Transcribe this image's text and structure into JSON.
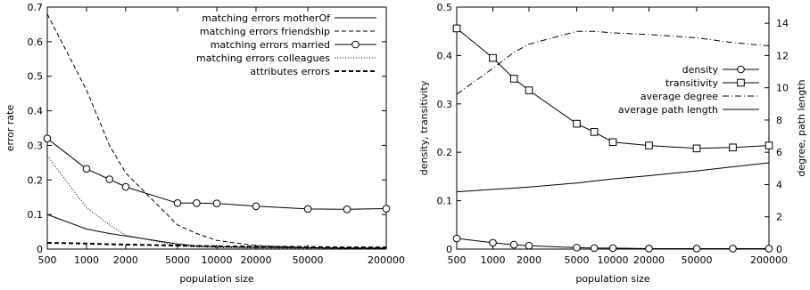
{
  "chart_data": [
    {
      "type": "line",
      "xlabel": "population size",
      "ylabel": "error rate",
      "x_scale": "log",
      "xlim": [
        500,
        200000
      ],
      "ylim": [
        0,
        0.7
      ],
      "x_ticks": [
        500,
        1000,
        2000,
        5000,
        10000,
        20000,
        50000,
        200000
      ],
      "x_tick_labels": [
        "500",
        "1000",
        "2000",
        "5000",
        "10000",
        "20000",
        "50000",
        "200000"
      ],
      "y_ticks": [
        0,
        0.1,
        0.2,
        0.3,
        0.4,
        0.5,
        0.6,
        0.7
      ],
      "y_tick_labels": [
        "0",
        "0.1",
        "0.2",
        "0.3",
        "0.4",
        "0.5",
        "0.6",
        "0.7"
      ],
      "legend_position": "top-right",
      "series": [
        {
          "name": "matching errors motherOf",
          "style": "solid",
          "marker": "none",
          "x": [
            500,
            1000,
            1500,
            2000,
            5000,
            7000,
            10000,
            20000,
            50000,
            100000,
            200000
          ],
          "y": [
            0.1,
            0.058,
            0.045,
            0.038,
            0.015,
            0.009,
            0.007,
            0.005,
            0.004,
            0.003,
            0.003
          ]
        },
        {
          "name": "matching errors friendship",
          "style": "dashed",
          "marker": "none",
          "x": [
            500,
            1000,
            1500,
            2000,
            5000,
            7000,
            10000,
            20000,
            50000,
            100000,
            200000
          ],
          "y": [
            0.68,
            0.46,
            0.3,
            0.22,
            0.07,
            0.045,
            0.025,
            0.01,
            0.004,
            0.002,
            0.002
          ]
        },
        {
          "name": "matching errors married",
          "style": "solid",
          "marker": "circle",
          "x": [
            500,
            1000,
            1500,
            2000,
            5000,
            7000,
            10000,
            20000,
            50000,
            100000,
            200000
          ],
          "y": [
            0.32,
            0.232,
            0.202,
            0.18,
            0.133,
            0.133,
            0.132,
            0.124,
            0.116,
            0.115,
            0.117
          ]
        },
        {
          "name": "matching errors colleagues",
          "style": "dotted",
          "marker": "none",
          "x": [
            500,
            1000,
            1500,
            2000,
            5000,
            7000,
            10000,
            20000,
            50000,
            100000,
            200000
          ],
          "y": [
            0.27,
            0.12,
            0.07,
            0.04,
            0.01,
            0.006,
            0.004,
            0.003,
            0.002,
            0.002,
            0.002
          ]
        },
        {
          "name": "attributes errors",
          "style": "bold-dashed",
          "marker": "none",
          "x": [
            500,
            1000,
            1500,
            2000,
            5000,
            7000,
            10000,
            20000,
            50000,
            100000,
            200000
          ],
          "y": [
            0.018,
            0.016,
            0.014,
            0.013,
            0.01,
            0.009,
            0.008,
            0.007,
            0.006,
            0.005,
            0.005
          ]
        }
      ]
    },
    {
      "type": "line",
      "xlabel": "population size",
      "ylabel": "density, transitivity",
      "y2label": "degree, path length",
      "x_scale": "log",
      "xlim": [
        500,
        200000
      ],
      "ylim": [
        0,
        0.5
      ],
      "y2lim": [
        0,
        15
      ],
      "x_ticks": [
        500,
        1000,
        2000,
        5000,
        10000,
        20000,
        50000,
        200000
      ],
      "x_tick_labels": [
        "500",
        "1000",
        "2000",
        "5000",
        "10000",
        "20000",
        "50000",
        "200000"
      ],
      "y_ticks": [
        0,
        0.1,
        0.2,
        0.3,
        0.4,
        0.5
      ],
      "y_tick_labels": [
        "0",
        "0.1",
        "0.2",
        "0.3",
        "0.4",
        "0.5"
      ],
      "y2_ticks": [
        0,
        2,
        4,
        6,
        8,
        10,
        12,
        14
      ],
      "y2_tick_labels": [
        "0",
        "2",
        "4",
        "6",
        "8",
        "10",
        "12",
        "14"
      ],
      "legend_position": "center-right",
      "series": [
        {
          "name": "density",
          "style": "solid",
          "marker": "circle",
          "axis": "left",
          "x": [
            500,
            1000,
            1500,
            2000,
            5000,
            7000,
            10000,
            20000,
            50000,
            100000,
            200000
          ],
          "y": [
            0.022,
            0.013,
            0.009,
            0.007,
            0.003,
            0.002,
            0.002,
            0.001,
            0.001,
            0.001,
            0.001
          ]
        },
        {
          "name": "transitivity",
          "style": "solid",
          "marker": "square",
          "axis": "left",
          "x": [
            500,
            1000,
            1500,
            2000,
            5000,
            7000,
            10000,
            20000,
            50000,
            100000,
            200000
          ],
          "y": [
            0.456,
            0.395,
            0.352,
            0.328,
            0.259,
            0.242,
            0.221,
            0.214,
            0.208,
            0.21,
            0.214
          ]
        },
        {
          "name": "average degree",
          "style": "dash-dot",
          "marker": "none",
          "axis": "right",
          "x": [
            500,
            1000,
            1500,
            2000,
            5000,
            7000,
            10000,
            20000,
            50000,
            100000,
            200000
          ],
          "y": [
            9.6,
            11.2,
            12.2,
            12.7,
            13.5,
            13.5,
            13.4,
            13.3,
            13.1,
            12.8,
            12.6
          ]
        },
        {
          "name": "average path length",
          "style": "solid",
          "marker": "none",
          "axis": "right",
          "x": [
            500,
            1000,
            1500,
            2000,
            5000,
            7000,
            10000,
            20000,
            50000,
            100000,
            200000
          ],
          "y": [
            3.55,
            3.7,
            3.78,
            3.85,
            4.1,
            4.22,
            4.35,
            4.55,
            4.85,
            5.1,
            5.35
          ]
        }
      ]
    }
  ]
}
